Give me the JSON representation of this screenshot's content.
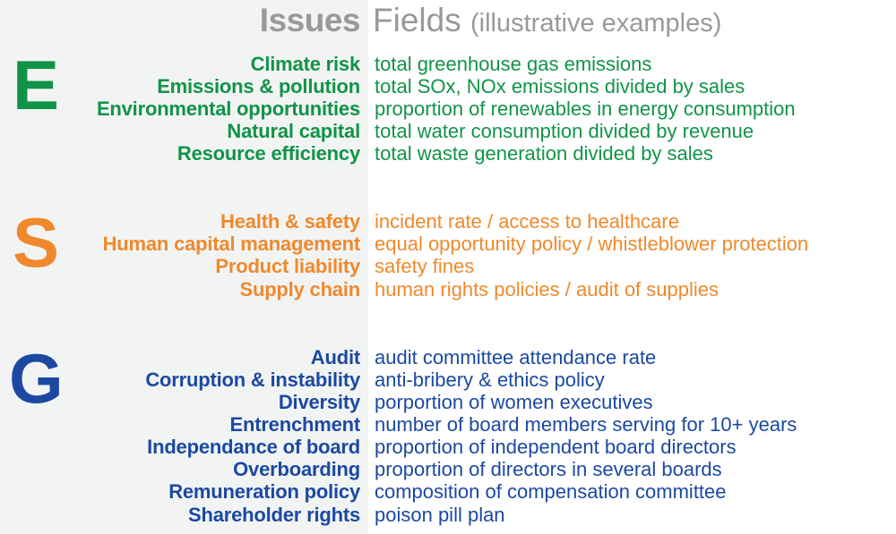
{
  "header": {
    "issues_label": "Issues",
    "fields_label": "Fields",
    "fields_sub": "(illustrative examples)"
  },
  "colors": {
    "environmental": "#109447",
    "social": "#f0892b",
    "governance": "#1b49a2",
    "header_gray": "#999999",
    "panel_bg": "#f2f4f4"
  },
  "groups": [
    {
      "letter": "E",
      "rows": [
        {
          "issue": "Climate risk",
          "field": "total greenhouse gas emissions"
        },
        {
          "issue": "Emissions & pollution",
          "field": "total SOx, NOx emissions divided by sales"
        },
        {
          "issue": "Environmental opportunities",
          "field": "proportion of renewables in energy consumption"
        },
        {
          "issue": "Natural capital",
          "field": "total water consumption divided by revenue"
        },
        {
          "issue": "Resource efficiency",
          "field": "total waste generation divided by sales"
        }
      ]
    },
    {
      "letter": "S",
      "rows": [
        {
          "issue": "Health & safety",
          "field": "incident rate / access to healthcare"
        },
        {
          "issue": "Human capital management",
          "field": "equal opportunity policy / whistleblower protection"
        },
        {
          "issue": "Product liability",
          "field": "safety fines"
        },
        {
          "issue": "Supply chain",
          "field": "human rights policies / audit of supplies"
        }
      ]
    },
    {
      "letter": "G",
      "rows": [
        {
          "issue": "Audit",
          "field": "audit committee attendance rate"
        },
        {
          "issue": "Corruption & instability",
          "field": "anti-bribery & ethics policy"
        },
        {
          "issue": "Diversity",
          "field": "porportion of women executives"
        },
        {
          "issue": "Entrenchment",
          "field": "number of board members serving for 10+ years"
        },
        {
          "issue": "Independance of board",
          "field": "proportion of independent board directors"
        },
        {
          "issue": "Overboarding",
          "field": "proportion of directors in several boards"
        },
        {
          "issue": "Remuneration policy",
          "field": "composition of compensation committee"
        },
        {
          "issue": "Shareholder rights",
          "field": "poison pill plan"
        }
      ]
    }
  ]
}
